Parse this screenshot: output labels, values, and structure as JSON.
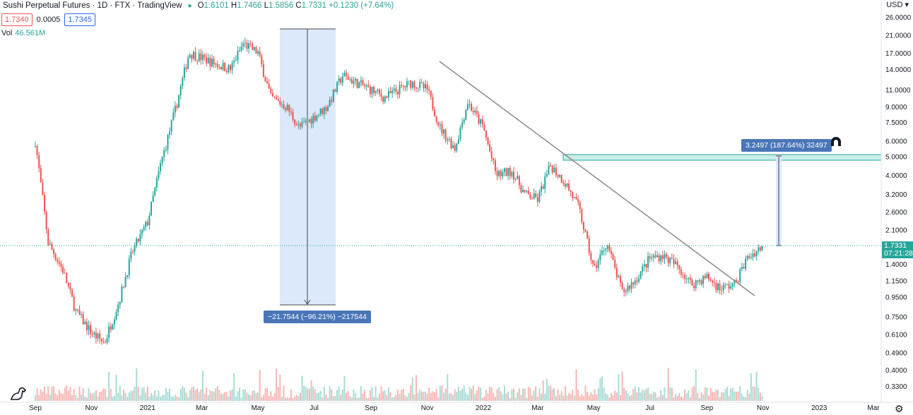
{
  "legend": {
    "symbol": "Sushi Perpetual Futures · 1D · FTX · TradingView",
    "o_label": "O",
    "o": "1.6101",
    "h_label": "H",
    "h": "1.7466",
    "l_label": "L",
    "l": "1.5856",
    "c_label": "C",
    "c": "1.7331",
    "change": "+0.1230 (+7.64%)"
  },
  "quote": {
    "sell": "1.7340",
    "spread": "0.0005",
    "buy": "1.7345"
  },
  "volume": {
    "label": "Vol",
    "value": "46.561M"
  },
  "currency": "USD",
  "measures": {
    "down": "−21.7544 (−96.21%) −217544",
    "up": "3.2497 (187.64%) 32497"
  },
  "current_price": {
    "price": "1.7331",
    "countdown": "07:21:28"
  },
  "icons": {
    "magnet": "magnet-icon",
    "settings": "gear-icon",
    "logo": "tradingview-dino-logo"
  },
  "colors": {
    "up": "#26a69a",
    "down": "#ef5350",
    "measure_fill": "#dbe9fb",
    "zone": "#26a69a",
    "trendline": "#808080"
  },
  "chart_data": {
    "type": "candlestick",
    "y_scale": "log",
    "y_ticks": [
      26.0,
      21.0,
      17.0,
      14.0,
      11.0,
      9.0,
      7.5,
      6.0,
      5.0,
      4.0,
      3.2,
      2.6,
      2.1,
      1.4,
      1.15,
      0.95,
      0.75,
      0.61,
      0.49,
      0.4,
      0.33
    ],
    "y_tick_labels": [
      "26.0000",
      "21.0000",
      "17.0000",
      "14.0000",
      "11.0000",
      "9.0000",
      "7.5000",
      "6.0000",
      "5.0000",
      "4.0000",
      "3.2000",
      "2.6000",
      "2.1000",
      "1.4000",
      "1.1500",
      "0.9500",
      "0.7500",
      "0.6100",
      "0.4900",
      "0.4000",
      "0.3300"
    ],
    "x_labels": [
      "Sep",
      "Nov",
      "2021",
      "Mar",
      "May",
      "Jul",
      "Sep",
      "Nov",
      "2022",
      "Mar",
      "May",
      "Jul",
      "Sep",
      "Nov",
      "2023",
      "Mar"
    ],
    "series": [
      {
        "dates": [
          "2020-09-01",
          "2020-09-15",
          "2020-10-01",
          "2020-10-15",
          "2020-11-01",
          "2020-11-15",
          "2020-12-01",
          "2020-12-15",
          "2021-01-01",
          "2021-01-15",
          "2021-02-01",
          "2021-02-15",
          "2021-03-01",
          "2021-03-15",
          "2021-04-01",
          "2021-04-15",
          "2021-05-01",
          "2021-05-15",
          "2021-06-01",
          "2021-06-15",
          "2021-07-01",
          "2021-07-15",
          "2021-08-01",
          "2021-08-15",
          "2021-09-01",
          "2021-09-15",
          "2021-10-01",
          "2021-10-15",
          "2021-11-01",
          "2021-11-15",
          "2021-12-01",
          "2021-12-15",
          "2022-01-01",
          "2022-01-15",
          "2022-02-01",
          "2022-02-15",
          "2022-03-01",
          "2022-03-15",
          "2022-04-01",
          "2022-04-15",
          "2022-05-01",
          "2022-05-15",
          "2022-06-01",
          "2022-06-15",
          "2022-07-01",
          "2022-07-15",
          "2022-08-01",
          "2022-08-15",
          "2022-09-01",
          "2022-09-15",
          "2022-10-01",
          "2022-10-15",
          "2022-10-31"
        ],
        "close": [
          6.0,
          1.8,
          1.3,
          0.8,
          0.62,
          0.55,
          0.9,
          1.6,
          2.3,
          4.5,
          9.0,
          17.0,
          16.0,
          15.0,
          14.0,
          19.0,
          17.0,
          10.0,
          9.0,
          7.0,
          8.0,
          9.0,
          13.0,
          12.0,
          11.0,
          10.0,
          11.0,
          12.0,
          11.0,
          7.0,
          5.5,
          9.5,
          7.0,
          4.0,
          4.2,
          3.2,
          3.0,
          4.5,
          3.6,
          2.7,
          1.3,
          1.8,
          1.0,
          1.15,
          1.5,
          1.55,
          1.35,
          1.1,
          1.2,
          1.05,
          1.1,
          1.5,
          1.73
        ]
      }
    ],
    "annotations": {
      "trendline_from": [
        "2021-10-28",
        15.5
      ],
      "trendline_to": [
        "2022-10-28",
        0.98
      ],
      "zone_top": 5.05,
      "zone_bottom": 4.55
    }
  }
}
